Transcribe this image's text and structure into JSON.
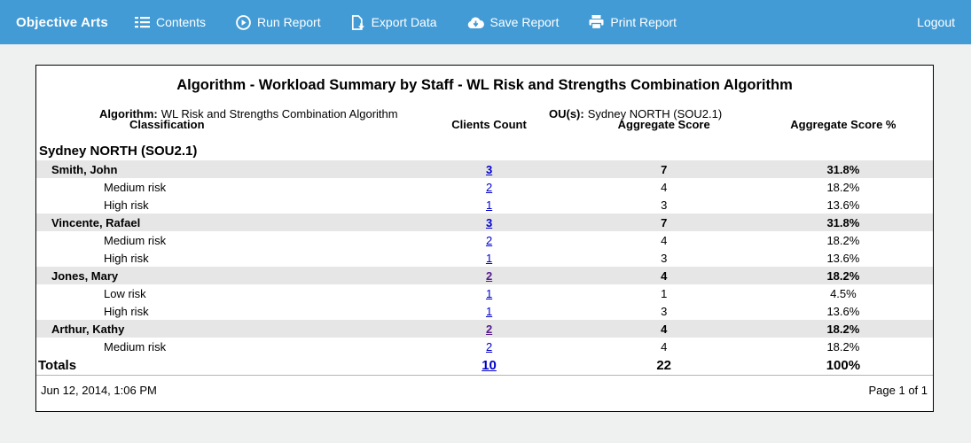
{
  "nav": {
    "brand": "Objective Arts",
    "items": [
      {
        "label": "Contents",
        "icon": "list-icon"
      },
      {
        "label": "Run Report",
        "icon": "play-circle-icon"
      },
      {
        "label": "Export Data",
        "icon": "export-file-icon"
      },
      {
        "label": "Save Report",
        "icon": "cloud-download-icon"
      },
      {
        "label": "Print Report",
        "icon": "printer-icon"
      }
    ],
    "logout": "Logout"
  },
  "report": {
    "title": "Algorithm - Workload Summary by Staff - WL Risk and Strengths Combination Algorithm",
    "meta": {
      "algorithm_label": "Algorithm:",
      "algorithm_value": "WL Risk and Strengths Combination Algorithm",
      "ou_label": "OU(s):",
      "ou_value": "Sydney NORTH (SOU2.1)"
    },
    "columns": [
      "Classification",
      "Clients Count",
      "Aggregate Score",
      "Aggregate Score %"
    ],
    "group": "Sydney NORTH (SOU2.1)",
    "staff": [
      {
        "name": "Smith, John",
        "clients": "3",
        "score": "7",
        "pct": "31.8%",
        "visited": false,
        "rows": [
          {
            "label": "Medium risk",
            "clients": "2",
            "score": "4",
            "pct": "18.2%",
            "visited": false
          },
          {
            "label": "High risk",
            "clients": "1",
            "score": "3",
            "pct": "13.6%",
            "visited": false
          }
        ]
      },
      {
        "name": "Vincente, Rafael",
        "clients": "3",
        "score": "7",
        "pct": "31.8%",
        "visited": false,
        "rows": [
          {
            "label": "Medium risk",
            "clients": "2",
            "score": "4",
            "pct": "18.2%",
            "visited": false
          },
          {
            "label": "High risk",
            "clients": "1",
            "score": "3",
            "pct": "13.6%",
            "visited": false
          }
        ]
      },
      {
        "name": "Jones, Mary",
        "clients": "2",
        "score": "4",
        "pct": "18.2%",
        "visited": true,
        "rows": [
          {
            "label": "Low risk",
            "clients": "1",
            "score": "1",
            "pct": "4.5%",
            "visited": false
          },
          {
            "label": "High risk",
            "clients": "1",
            "score": "3",
            "pct": "13.6%",
            "visited": false
          }
        ]
      },
      {
        "name": "Arthur, Kathy",
        "clients": "2",
        "score": "4",
        "pct": "18.2%",
        "visited": true,
        "rows": [
          {
            "label": "Medium risk",
            "clients": "2",
            "score": "4",
            "pct": "18.2%",
            "visited": false
          }
        ]
      }
    ],
    "totals": {
      "label": "Totals",
      "clients": "10",
      "score": "22",
      "pct": "100%"
    },
    "footer": {
      "timestamp": "Jun 12, 2014, 1:06 PM",
      "page": "Page 1 of 1"
    }
  },
  "colors": {
    "nav_bg": "#429bd5",
    "page_bg": "#eff1f1",
    "link": "#0000cc",
    "visited_link": "#551a8b",
    "row_highlight": "#e6e6e6"
  }
}
